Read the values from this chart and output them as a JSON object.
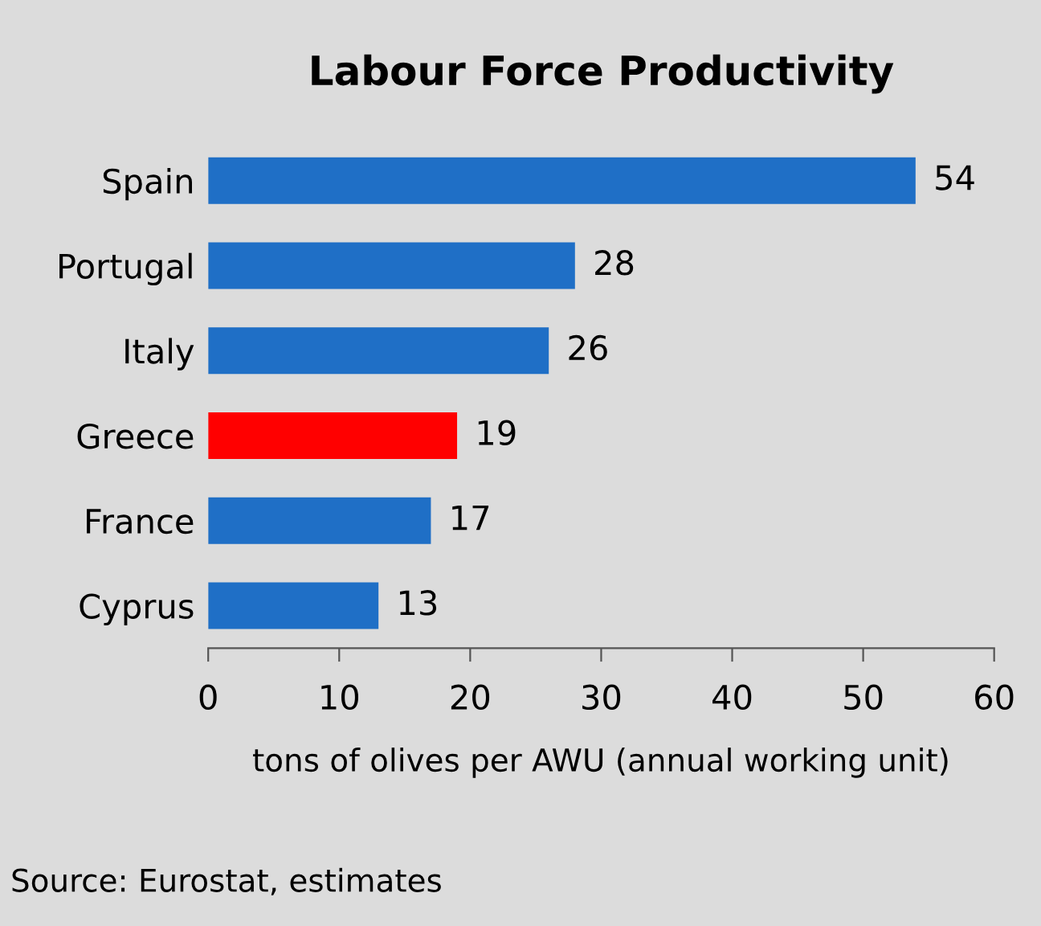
{
  "chart_data": {
    "type": "bar",
    "orientation": "horizontal",
    "title": "Labour Force Productivity",
    "categories": [
      "Spain",
      "Portugal",
      "Italy",
      "Greece",
      "France",
      "Cyprus"
    ],
    "values": [
      54,
      28,
      26,
      19,
      17,
      13
    ],
    "colors": [
      "#1f6fc6",
      "#1f6fc6",
      "#1f6fc6",
      "#ff0000",
      "#1f6fc6",
      "#1f6fc6"
    ],
    "xlim": [
      0,
      60
    ],
    "xticks": [
      0,
      10,
      20,
      30,
      40,
      50,
      60
    ],
    "xlabel": "tons of olives per AWU (annual working unit)",
    "data_labels": true,
    "grid": false,
    "legend": false,
    "annotations": [
      "Source: Eurostat, estimates"
    ]
  }
}
